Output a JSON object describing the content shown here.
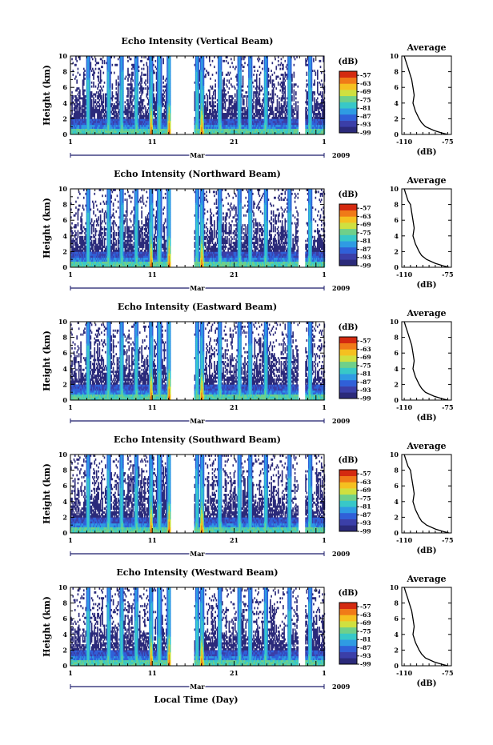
{
  "figure": {
    "x_axis_title": "Local Time (Day)"
  },
  "colorbar": {
    "unit": "(dB)",
    "labels": [
      "-57",
      "-63",
      "-69",
      "-75",
      "-81",
      "-87",
      "-93",
      "-99"
    ],
    "min": -99,
    "max": -54,
    "colors": [
      "#2b2a7a",
      "#3b3fa8",
      "#3060d8",
      "#2f9be3",
      "#38c8c8",
      "#6fd08a",
      "#cfe040",
      "#f5c020",
      "#f07a18",
      "#d42a10"
    ]
  },
  "chart_data": [
    {
      "type": "heatmap",
      "title": "Echo Intensity (Vertical Beam)",
      "ylabel": "Height (km)",
      "ylim": [
        0,
        10
      ],
      "y_ticks": [
        "0",
        "2",
        "4",
        "6",
        "8",
        "10"
      ],
      "x_ticks": [
        "1",
        "11",
        "21",
        "1"
      ],
      "month_label": "Mar",
      "year_label": "2009",
      "xlim_days": [
        1,
        32
      ],
      "data_gaps_days": [
        [
          13.2,
          16.1
        ],
        [
          28.8,
          29.6
        ]
      ],
      "average_profile": {
        "title": "Average",
        "xlabel": "(dB)",
        "x_ticks": [
          "-110",
          "-75"
        ],
        "xlim": [
          -112,
          -72
        ],
        "y_ticks": [
          "0",
          "2",
          "4",
          "6",
          "8",
          "10"
        ],
        "heights": [
          0,
          0.2,
          0.5,
          1,
          1.5,
          2,
          3,
          4,
          5,
          6,
          7,
          8,
          8.5,
          9,
          9.5,
          10
        ],
        "values": [
          -75,
          -80,
          -86,
          -93,
          -96,
          -98,
          -101,
          -103,
          -102,
          -103,
          -104,
          -106,
          -107,
          -108,
          -109,
          -110
        ]
      }
    },
    {
      "type": "heatmap",
      "title": "Echo Intensity (Northward Beam)",
      "ylabel": "Height (km)",
      "ylim": [
        0,
        10
      ],
      "y_ticks": [
        "0",
        "2",
        "4",
        "6",
        "8",
        "10"
      ],
      "x_ticks": [
        "1",
        "11",
        "21",
        "1"
      ],
      "month_label": "Mar",
      "year_label": "2009",
      "xlim_days": [
        1,
        32
      ],
      "data_gaps_days": [
        [
          13.2,
          16.1
        ],
        [
          28.8,
          29.6
        ]
      ],
      "average_profile": {
        "title": "Average",
        "xlabel": "(dB)",
        "x_ticks": [
          "-110",
          "-75"
        ],
        "xlim": [
          -112,
          -72
        ],
        "y_ticks": [
          "0",
          "2",
          "4",
          "6",
          "8",
          "10"
        ],
        "heights": [
          0,
          0.2,
          0.5,
          1,
          1.5,
          2,
          3,
          4,
          5,
          6,
          7,
          8,
          8.5,
          9,
          9.5,
          10
        ],
        "values": [
          -74,
          -79,
          -85,
          -92,
          -96,
          -98,
          -101,
          -103,
          -102,
          -103,
          -104,
          -105,
          -107,
          -108,
          -109,
          -110
        ]
      }
    },
    {
      "type": "heatmap",
      "title": "Echo Intensity (Eastward Beam)",
      "ylabel": "Height (km)",
      "ylim": [
        0,
        10
      ],
      "y_ticks": [
        "0",
        "2",
        "4",
        "6",
        "8",
        "10"
      ],
      "x_ticks": [
        "1",
        "11",
        "21",
        "1"
      ],
      "month_label": "Mar",
      "year_label": "2009",
      "xlim_days": [
        1,
        32
      ],
      "data_gaps_days": [
        [
          13.2,
          16.1
        ],
        [
          28.8,
          29.6
        ]
      ],
      "average_profile": {
        "title": "Average",
        "xlabel": "(dB)",
        "x_ticks": [
          "-110",
          "-75"
        ],
        "xlim": [
          -112,
          -72
        ],
        "y_ticks": [
          "0",
          "2",
          "4",
          "6",
          "8",
          "10"
        ],
        "heights": [
          0,
          0.2,
          0.5,
          1,
          1.5,
          2,
          3,
          4,
          5,
          6,
          7,
          8,
          8.5,
          9,
          9.5,
          10
        ],
        "values": [
          -75,
          -80,
          -86,
          -93,
          -96,
          -98,
          -101,
          -103,
          -102,
          -103,
          -104,
          -106,
          -107,
          -108,
          -109,
          -110
        ]
      }
    },
    {
      "type": "heatmap",
      "title": "Echo Intensity (Southward Beam)",
      "ylabel": "Height (km)",
      "ylim": [
        0,
        10
      ],
      "y_ticks": [
        "0",
        "2",
        "4",
        "6",
        "8",
        "10"
      ],
      "x_ticks": [
        "1",
        "11",
        "21",
        "1"
      ],
      "month_label": "Mar",
      "year_label": "2009",
      "xlim_days": [
        1,
        32
      ],
      "data_gaps_days": [
        [
          13.2,
          16.1
        ],
        [
          28.8,
          29.6
        ]
      ],
      "average_profile": {
        "title": "Average",
        "xlabel": "(dB)",
        "x_ticks": [
          "-110",
          "-75"
        ],
        "xlim": [
          -112,
          -72
        ],
        "y_ticks": [
          "0",
          "2",
          "4",
          "6",
          "8",
          "10"
        ],
        "heights": [
          0,
          0.2,
          0.5,
          1,
          1.5,
          2,
          3,
          4,
          5,
          6,
          7,
          8,
          8.5,
          9,
          9.5,
          10
        ],
        "values": [
          -74,
          -79,
          -85,
          -92,
          -96,
          -98,
          -101,
          -103,
          -102,
          -103,
          -104,
          -105,
          -107,
          -108,
          -109,
          -110
        ]
      }
    },
    {
      "type": "heatmap",
      "title": "Echo Intensity (Westward Beam)",
      "ylabel": "Height (km)",
      "ylim": [
        0,
        10
      ],
      "y_ticks": [
        "0",
        "2",
        "4",
        "6",
        "8",
        "10"
      ],
      "x_ticks": [
        "1",
        "11",
        "21",
        "1"
      ],
      "month_label": "Mar",
      "year_label": "2009",
      "xlim_days": [
        1,
        32
      ],
      "data_gaps_days": [
        [
          13.2,
          16.1
        ],
        [
          28.8,
          29.6
        ]
      ],
      "average_profile": {
        "title": "Average",
        "xlabel": "(dB)",
        "x_ticks": [
          "-110",
          "-75"
        ],
        "xlim": [
          -112,
          -72
        ],
        "y_ticks": [
          "0",
          "2",
          "4",
          "6",
          "8",
          "10"
        ],
        "heights": [
          0,
          0.2,
          0.5,
          1,
          1.5,
          2,
          3,
          4,
          5,
          6,
          7,
          8,
          8.5,
          9,
          9.5,
          10
        ],
        "values": [
          -75,
          -80,
          -86,
          -93,
          -96,
          -98,
          -101,
          -103,
          -102,
          -103,
          -104,
          -106,
          -107,
          -108,
          -109,
          -110
        ]
      }
    }
  ]
}
